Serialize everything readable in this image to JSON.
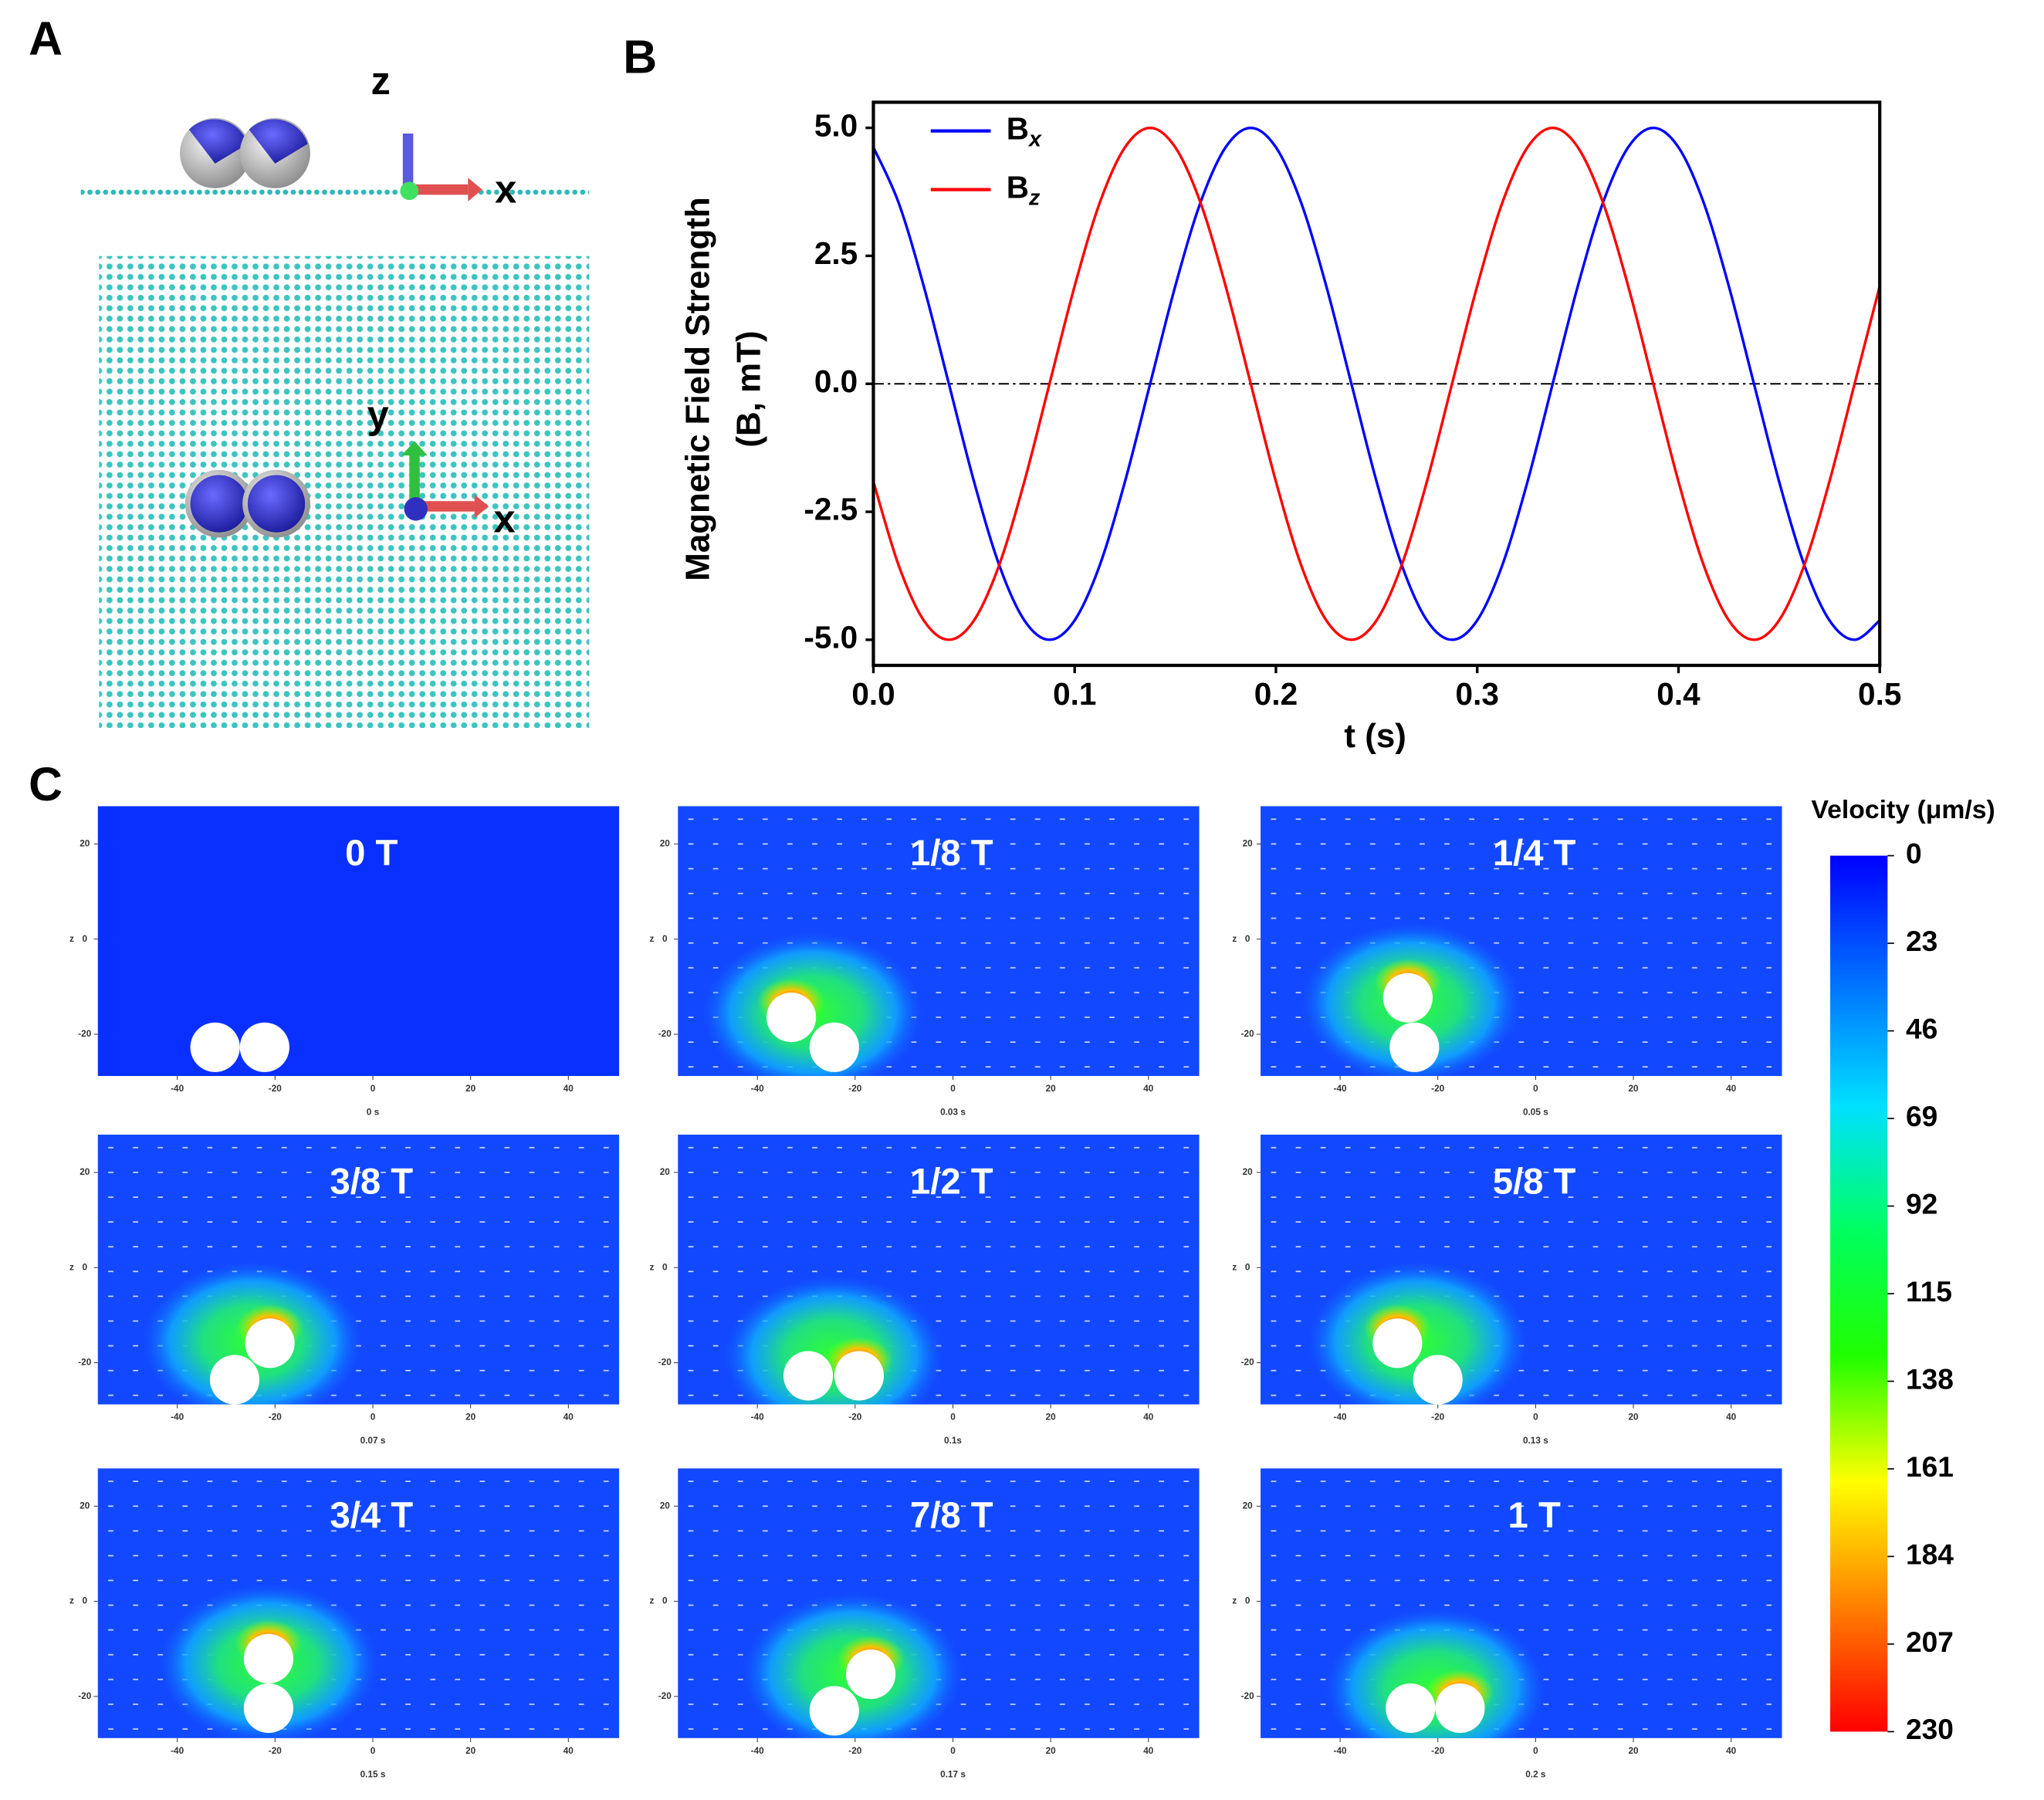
{
  "panel_labels": [
    "A",
    "B",
    "C"
  ],
  "panel_a": {
    "axis_labels": [
      "z",
      "x",
      "y",
      "x"
    ]
  },
  "chart_data": {
    "type": "line",
    "x_label": "t (s)",
    "y_label": [
      "Magnetic Field Strength",
      "(B, mT)"
    ],
    "x": [
      0,
      0.0125,
      0.025,
      0.0375,
      0.05,
      0.0625,
      0.075,
      0.0875,
      0.1,
      0.1125,
      0.125,
      0.1375,
      0.15,
      0.1625,
      0.175,
      0.1875,
      0.2,
      0.2125,
      0.225,
      0.2375,
      0.25,
      0.2625,
      0.275,
      0.2875,
      0.3,
      0.3125,
      0.325,
      0.3375,
      0.35,
      0.3625,
      0.375,
      0.3875,
      0.4,
      0.4125,
      0.425,
      0.4375,
      0.45,
      0.4625,
      0.475,
      0.4875,
      0.5
    ],
    "series": [
      {
        "name": "B",
        "subscript": "x",
        "color": "#0000ff",
        "values": [
          4.62,
          3.54,
          1.91,
          0,
          -1.91,
          -3.54,
          -4.62,
          -5,
          -4.62,
          -3.54,
          -1.91,
          0,
          1.91,
          3.54,
          4.62,
          5,
          4.62,
          3.54,
          1.91,
          0,
          -1.91,
          -3.54,
          -4.62,
          -5,
          -4.62,
          -3.54,
          -1.91,
          0,
          1.91,
          3.54,
          4.62,
          5,
          4.62,
          3.54,
          1.91,
          0,
          -1.91,
          -3.54,
          -4.62,
          -5,
          -4.62
        ]
      },
      {
        "name": "B",
        "subscript": "z",
        "color": "#ff0000",
        "values": [
          -1.91,
          -3.54,
          -4.62,
          -5,
          -4.62,
          -3.54,
          -1.91,
          0,
          1.91,
          3.54,
          4.62,
          5,
          4.62,
          3.54,
          1.91,
          0,
          -1.91,
          -3.54,
          -4.62,
          -5,
          -4.62,
          -3.54,
          -1.91,
          0,
          1.91,
          3.54,
          4.62,
          5,
          4.62,
          3.54,
          1.91,
          0,
          -1.91,
          -3.54,
          -4.62,
          -5,
          -4.62,
          -3.54,
          -1.91,
          0,
          1.91
        ]
      }
    ],
    "xlim": [
      0,
      0.5
    ],
    "ylim": [
      -5.5,
      5.5
    ],
    "xticks": [
      {
        "value": 0,
        "label": "0.0"
      },
      0.1,
      0.2,
      0.3,
      0.4,
      0.5
    ],
    "yticks": [
      {
        "value": -5,
        "label": "-5.0"
      },
      -2.5,
      {
        "value": 0,
        "label": "0.0"
      },
      2.5,
      {
        "value": 5,
        "label": "5.0"
      }
    ],
    "reference_line": 0,
    "legend": "upper left"
  },
  "panel_c": {
    "y_axis_label": "z",
    "xticks": [
      -40,
      -20,
      0,
      20,
      40
    ],
    "yticks": [
      20,
      0,
      -20
    ],
    "frames": [
      {
        "label": "0 T",
        "time": "0 s"
      },
      {
        "label": "1/8 T",
        "time": "0.03 s"
      },
      {
        "label": "1/4 T",
        "time": "0.05 s"
      },
      {
        "label": "3/8 T",
        "time": "0.07 s"
      },
      {
        "label": "1/2 T",
        "time": "0.1s"
      },
      {
        "label": "5/8 T",
        "time": "0.13 s"
      },
      {
        "label": "3/4 T",
        "time": "0.15 s"
      },
      {
        "label": "7/8 T",
        "time": "0.17 s"
      },
      {
        "label": "1 T",
        "time": "0.2 s"
      }
    ],
    "colorbar": {
      "title": "Velocity (μm/s)",
      "range": [
        0,
        230
      ],
      "ticks": [
        0,
        23,
        46,
        69,
        92,
        115,
        138,
        161,
        184,
        207,
        230
      ],
      "colors": [
        "#0000ff",
        "#0070ff",
        "#00e0ff",
        "#00ff60",
        "#20ff00",
        "#ffff00",
        "#ff8000",
        "#ff0000"
      ]
    }
  }
}
